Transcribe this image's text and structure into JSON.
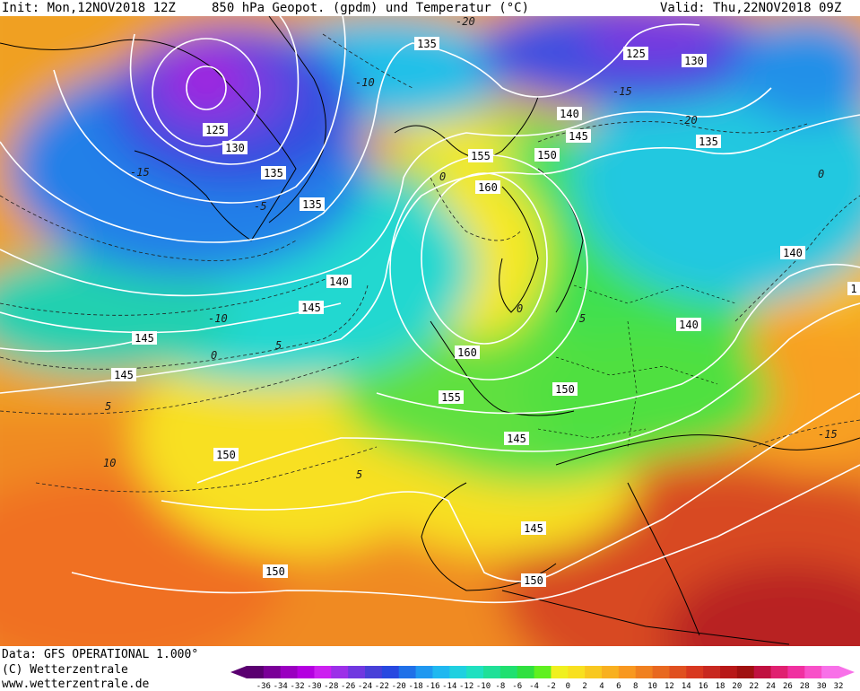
{
  "header": {
    "init": "Init: Mon,12NOV2018 12Z",
    "title": "850 hPa Geopot. (gpdm) und Temperatur (°C)",
    "valid": "Valid: Thu,22NOV2018 09Z"
  },
  "footer": {
    "data_line": "Data: GFS OPERATIONAL 1.000°",
    "copyright": "(C) Wetterzentrale",
    "url": "www.wetterzentrale.de"
  },
  "colorbar": {
    "ticks": [
      "-36",
      "-34",
      "-32",
      "-30",
      "-28",
      "-26",
      "-24",
      "-22",
      "-20",
      "-18",
      "-16",
      "-14",
      "-12",
      "-10",
      "-8",
      "-6",
      "-4",
      "-2",
      "0",
      "2",
      "4",
      "6",
      "8",
      "10",
      "12",
      "14",
      "16",
      "18",
      "20",
      "22",
      "24",
      "26",
      "28",
      "30",
      "32"
    ],
    "colors": [
      "#5a0070",
      "#7a0098",
      "#9a00c0",
      "#b400e0",
      "#cc20f0",
      "#9c30e8",
      "#7038e0",
      "#4840d8",
      "#2848e0",
      "#2070e8",
      "#2098f0",
      "#20b8f0",
      "#20d0e0",
      "#20e0c0",
      "#20e098",
      "#20e070",
      "#30e040",
      "#60f020",
      "#f0f020",
      "#f8e020",
      "#f8c820",
      "#f8b020",
      "#f89820",
      "#f08020",
      "#e86820",
      "#e05020",
      "#d83820",
      "#c82820",
      "#b81818",
      "#a01010",
      "#c01040",
      "#e02070",
      "#f030a0",
      "#f850c8",
      "#f870e8"
    ]
  },
  "map_labels": {
    "geopotential": [
      {
        "text": "135"
      },
      {
        "text": "125"
      },
      {
        "text": "130"
      },
      {
        "text": "125"
      },
      {
        "text": "130"
      },
      {
        "text": "135"
      },
      {
        "text": "135"
      },
      {
        "text": "140"
      },
      {
        "text": "145"
      },
      {
        "text": "155"
      },
      {
        "text": "150"
      },
      {
        "text": "135"
      },
      {
        "text": "160"
      },
      {
        "text": "140"
      },
      {
        "text": "140"
      },
      {
        "text": "145"
      },
      {
        "text": "145"
      },
      {
        "text": "140"
      },
      {
        "text": "145"
      },
      {
        "text": "160"
      },
      {
        "text": "155"
      },
      {
        "text": "150"
      },
      {
        "text": "145"
      },
      {
        "text": "150"
      },
      {
        "text": "145"
      },
      {
        "text": "150"
      },
      {
        "text": "150"
      },
      {
        "text": "1"
      }
    ],
    "temperature": [
      {
        "text": "-20"
      },
      {
        "text": "-10"
      },
      {
        "text": "-15"
      },
      {
        "text": "-20"
      },
      {
        "text": "-15"
      },
      {
        "text": "-5"
      },
      {
        "text": "0"
      },
      {
        "text": "-10"
      },
      {
        "text": "5"
      },
      {
        "text": "0"
      },
      {
        "text": "5"
      },
      {
        "text": "10"
      },
      {
        "text": "5"
      },
      {
        "text": "0"
      },
      {
        "text": "5"
      },
      {
        "text": "-15"
      },
      {
        "text": "0"
      }
    ]
  }
}
